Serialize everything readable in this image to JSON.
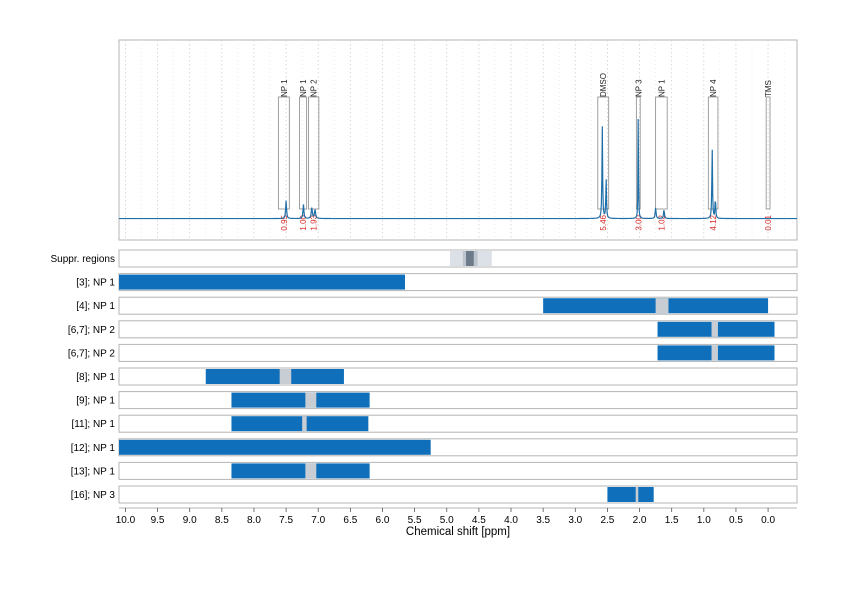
{
  "chart_data": {
    "type": "nmr-spectrum-with-range-bars",
    "xlabel": "Chemical shift [ppm]",
    "xlim": [
      10.1,
      -0.45
    ],
    "x_ticks": [
      10.0,
      9.5,
      9.0,
      8.5,
      8.0,
      7.5,
      7.0,
      6.5,
      6.0,
      5.5,
      5.0,
      4.5,
      4.0,
      3.5,
      3.0,
      2.5,
      2.0,
      1.5,
      1.0,
      0.5,
      0.0
    ],
    "x_tick_labels": [
      "10.0",
      "9.5",
      "9.0",
      "8.5",
      "8.0",
      "7.5",
      "7.0",
      "6.5",
      "6.0",
      "5.5",
      "5.0",
      "4.5",
      "4.0",
      "3.5",
      "3.0",
      "2.5",
      "2.0",
      "1.5",
      "1.0",
      "0.5",
      "0.0"
    ],
    "colors": {
      "spectrum": "#1f6fa8",
      "bar": "#0f6fba",
      "gap": "#c7cdd3",
      "suppr_outer": "#dbe1e7",
      "suppr_inner": "#bcc5ce",
      "suppr_core": "#6c7a89",
      "integral_text": "#d62728"
    },
    "spectrum": {
      "baseline": 0.0,
      "ylim": [
        -0.12,
        1.0
      ],
      "peaks": [
        {
          "x": 7.5,
          "h": 0.1,
          "w": 0.008
        },
        {
          "x": 7.23,
          "h": 0.08,
          "w": 0.008
        },
        {
          "x": 7.1,
          "h": 0.06,
          "w": 0.01
        },
        {
          "x": 7.05,
          "h": 0.05,
          "w": 0.01
        },
        {
          "x": 2.58,
          "h": 0.52,
          "w": 0.006
        },
        {
          "x": 2.52,
          "h": 0.22,
          "w": 0.006
        },
        {
          "x": 2.02,
          "h": 0.66,
          "w": 0.004
        },
        {
          "x": 1.75,
          "h": 0.06,
          "w": 0.008
        },
        {
          "x": 1.62,
          "h": 0.05,
          "w": 0.008
        },
        {
          "x": 0.87,
          "h": 0.4,
          "w": 0.006
        },
        {
          "x": 0.82,
          "h": 0.12,
          "w": 0.006
        }
      ],
      "regions": [
        {
          "label": "NP 1",
          "x1": 7.62,
          "x2": 7.45,
          "integral": "0.95"
        },
        {
          "label": "NP 1",
          "x1": 7.29,
          "x2": 7.18,
          "integral": "1.00"
        },
        {
          "label": "NP 2",
          "x1": 7.15,
          "x2": 6.99,
          "integral": "1.93"
        },
        {
          "label": "DMSO",
          "x1": 2.65,
          "x2": 2.48,
          "integral": "5.46"
        },
        {
          "label": "NP 3",
          "x1": 2.05,
          "x2": 1.99,
          "integral": "3.00"
        },
        {
          "label": "NP 1",
          "x1": 1.75,
          "x2": 1.57,
          "integral": "1.02"
        },
        {
          "label": "NP 4",
          "x1": 0.93,
          "x2": 0.78,
          "integral": "4.12"
        },
        {
          "label": "TMS",
          "x1": 0.03,
          "x2": -0.03,
          "integral": "0.01"
        }
      ]
    },
    "suppressed_regions": {
      "label": "Suppr. regions",
      "outer": [
        4.95,
        4.3
      ],
      "inner": [
        4.75,
        4.52
      ],
      "core": [
        4.7,
        4.58
      ]
    },
    "rows": [
      {
        "label": "[3]; NP 1",
        "x1": 10.1,
        "x2": 5.65,
        "gaps": []
      },
      {
        "label": "[4]; NP 1",
        "x1": 3.5,
        "x2": 0.0,
        "gaps": [
          [
            1.75,
            1.55
          ]
        ]
      },
      {
        "label": "[6,7]; NP 2",
        "x1": 1.72,
        "x2": -0.1,
        "gaps": [
          [
            0.88,
            0.78
          ]
        ]
      },
      {
        "label": "[6,7]; NP 2",
        "x1": 1.72,
        "x2": -0.1,
        "gaps": [
          [
            0.88,
            0.78
          ]
        ]
      },
      {
        "label": "[8]; NP 1",
        "x1": 8.75,
        "x2": 6.6,
        "gaps": [
          [
            7.6,
            7.42
          ]
        ]
      },
      {
        "label": "[9]; NP 1",
        "x1": 8.35,
        "x2": 6.2,
        "gaps": [
          [
            7.2,
            7.03
          ]
        ]
      },
      {
        "label": "[11]; NP 1",
        "x1": 8.35,
        "x2": 6.22,
        "gaps": [
          [
            7.25,
            7.18
          ]
        ]
      },
      {
        "label": "[12]; NP 1",
        "x1": 10.1,
        "x2": 5.25,
        "gaps": []
      },
      {
        "label": "[13]; NP 1",
        "x1": 8.35,
        "x2": 6.2,
        "gaps": [
          [
            7.2,
            7.03
          ]
        ]
      },
      {
        "label": "[16]; NP 3",
        "x1": 2.5,
        "x2": 1.78,
        "gaps": [
          [
            2.06,
            2.02
          ]
        ]
      }
    ]
  }
}
